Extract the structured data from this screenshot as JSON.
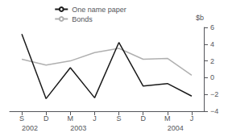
{
  "chart_data": {
    "type": "line",
    "categories": [
      "S",
      "D",
      "M",
      "J",
      "S",
      "D",
      "M",
      "J"
    ],
    "series": [
      {
        "name": "Bonds",
        "color": "#b0b0b0",
        "values": [
          2.2,
          1.5,
          2.0,
          3.0,
          3.5,
          2.2,
          2.3,
          0.3
        ]
      },
      {
        "name": "One name paper",
        "color": "#1a1a1a",
        "values": [
          5.2,
          -2.5,
          1.2,
          -2.4,
          4.2,
          -1.0,
          -0.7,
          -2.2
        ]
      }
    ],
    "ylabel": "$b",
    "ylim": [
      -4,
      6
    ],
    "yticks": [
      {
        "value": -4,
        "label": "−4"
      },
      {
        "value": -2,
        "label": "−2"
      },
      0,
      2,
      4,
      6
    ],
    "grid": false,
    "legend": "top",
    "annotations": [
      {
        "text": "2002",
        "x": 0
      },
      {
        "text": "2003",
        "x": 2
      },
      {
        "text": "2004",
        "x": 6
      }
    ]
  }
}
